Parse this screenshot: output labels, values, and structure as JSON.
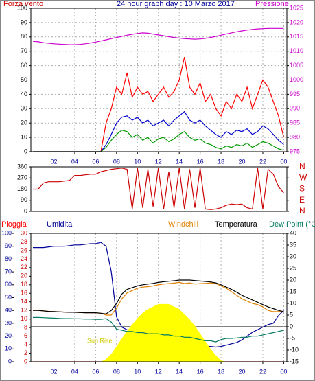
{
  "chart_data": [
    {
      "type": "line",
      "title": "24 hour graph day : 10 Marzo 2017",
      "ylabel": "Forza vento",
      "y2label": "Pressione",
      "x": [
        0,
        0.5,
        1,
        1.5,
        2,
        2.5,
        3,
        3.5,
        4,
        4.5,
        5,
        5.5,
        6,
        6.5,
        7,
        7.5,
        8,
        8.5,
        9,
        9.5,
        10,
        10.5,
        11,
        11.5,
        12,
        12.5,
        13,
        13.5,
        14,
        14.5,
        15,
        15.5,
        16,
        16.5,
        17,
        17.5,
        18,
        18.5,
        19,
        19.5,
        20,
        20.5,
        21,
        21.5,
        22,
        22.5,
        23,
        23.5,
        24
      ],
      "xlim": [
        -0.2,
        24.3
      ],
      "xticks": [
        {
          "value": 2,
          "label": "02"
        },
        {
          "value": 4,
          "label": "04"
        },
        {
          "value": 6,
          "label": "06"
        },
        {
          "value": 8,
          "label": "08"
        },
        10,
        12,
        14,
        16,
        18,
        20,
        22,
        {
          "value": 24,
          "label": "00"
        }
      ],
      "ylim": [
        0,
        100
      ],
      "yticks": [
        0,
        10,
        20,
        30,
        40,
        50,
        60,
        70,
        80,
        90,
        100
      ],
      "y2lim": [
        975,
        1025
      ],
      "y2ticks": [
        975,
        980,
        985,
        990,
        995,
        1000,
        1005,
        1010,
        1015,
        1020,
        1025
      ],
      "grid": true,
      "series": [
        {
          "color": "#ff0000",
          "values": [
            0,
            0,
            0,
            0,
            0,
            0,
            0,
            0,
            0,
            0,
            0,
            0,
            0,
            0,
            20,
            30,
            45,
            40,
            55,
            38,
            45,
            40,
            42,
            35,
            40,
            45,
            38,
            42,
            50,
            66,
            45,
            40,
            48,
            35,
            40,
            30,
            25,
            35,
            30,
            40,
            35,
            45,
            30,
            40,
            50,
            45,
            35,
            25,
            10
          ]
        },
        {
          "color": "#0000cc",
          "values": [
            0,
            0,
            0,
            0,
            0,
            0,
            0,
            0,
            0,
            0,
            0,
            0,
            0,
            0,
            5,
            12,
            20,
            24,
            25,
            22,
            24,
            20,
            22,
            18,
            20,
            22,
            18,
            22,
            25,
            28,
            22,
            20,
            22,
            18,
            15,
            12,
            10,
            14,
            12,
            15,
            14,
            16,
            12,
            14,
            18,
            16,
            12,
            8,
            5
          ]
        },
        {
          "color": "#009900",
          "values": [
            0,
            0,
            0,
            0,
            0,
            0,
            0,
            0,
            0,
            0,
            0,
            0,
            0,
            0,
            3,
            8,
            12,
            15,
            14,
            10,
            12,
            8,
            10,
            6,
            9,
            10,
            7,
            9,
            12,
            14,
            10,
            8,
            9,
            6,
            5,
            3,
            2,
            4,
            3,
            5,
            4,
            6,
            3,
            5,
            7,
            6,
            4,
            2,
            1
          ]
        },
        {
          "color": "#cc00cc",
          "axis": "y2",
          "values": [
            1013.5,
            1013.3,
            1013,
            1012.8,
            1012.6,
            1012.5,
            1012.4,
            1012.3,
            1012.3,
            1012.4,
            1012.6,
            1012.9,
            1013.2,
            1013.6,
            1014,
            1014.4,
            1014.8,
            1015.2,
            1015.6,
            1015.9,
            1016.2,
            1016.4,
            1016.3,
            1016,
            1015.7,
            1015.4,
            1015.1,
            1014.8,
            1014.6,
            1014.4,
            1014.3,
            1014.2,
            1014.3,
            1014.5,
            1014.8,
            1015.2,
            1015.6,
            1016,
            1016.4,
            1016.8,
            1017.1,
            1017.4,
            1017.6,
            1017.8,
            1017.9,
            1018,
            1018,
            1018,
            1018
          ]
        }
      ]
    },
    {
      "type": "line",
      "x": [
        0,
        0.5,
        1,
        1.5,
        2,
        2.5,
        3,
        3.5,
        4,
        4.5,
        5,
        5.5,
        6,
        6.5,
        7,
        7.5,
        8,
        8.5,
        9,
        9.5,
        10,
        10.5,
        11,
        11.5,
        12,
        12.5,
        13,
        13.5,
        14,
        14.5,
        15,
        15.5,
        16,
        16.5,
        17,
        17.5,
        18,
        18.5,
        19,
        19.5,
        20,
        20.5,
        21,
        21.5,
        22,
        22.5,
        23,
        23.5,
        24
      ],
      "xlim": [
        -0.2,
        24.3
      ],
      "ylim": [
        0,
        360
      ],
      "yticks": [
        0,
        90,
        180,
        270,
        360
      ],
      "y2lim": [
        0,
        360
      ],
      "y2ticks": [
        {
          "value": 360,
          "label": "N"
        },
        {
          "value": 270,
          "label": "W"
        },
        {
          "value": 180,
          "label": "S"
        },
        {
          "value": 90,
          "label": "E"
        },
        {
          "value": 0,
          "label": "N"
        }
      ],
      "grid": false,
      "series": [
        {
          "color": "#cc0000",
          "values": [
            180,
            180,
            230,
            240,
            240,
            240,
            245,
            250,
            290,
            290,
            295,
            300,
            300,
            320,
            330,
            340,
            345,
            350,
            340,
            20,
            350,
            30,
            340,
            40,
            350,
            20,
            320,
            30,
            350,
            20,
            340,
            30,
            350,
            20,
            15,
            20,
            30,
            50,
            60,
            55,
            60,
            30,
            20,
            350,
            20,
            340,
            300,
            200,
            150
          ]
        }
      ]
    },
    {
      "type": "line",
      "x": [
        0,
        0.5,
        1,
        1.5,
        2,
        2.5,
        3,
        3.5,
        4,
        4.5,
        5,
        5.5,
        6,
        6.5,
        7,
        7.5,
        8,
        8.5,
        9,
        9.5,
        10,
        10.5,
        11,
        11.5,
        12,
        12.5,
        13,
        13.5,
        14,
        14.5,
        15,
        15.5,
        16,
        16.5,
        17,
        17.5,
        18,
        18.5,
        19,
        19.5,
        20,
        20.5,
        21,
        21.5,
        22,
        22.5,
        23,
        23.5,
        24
      ],
      "xlim": [
        -0.2,
        24.3
      ],
      "xticks": [
        {
          "value": 2,
          "label": "02"
        },
        {
          "value": 4,
          "label": "04"
        },
        {
          "value": 6,
          "label": "06"
        },
        {
          "value": 8,
          "label": "08"
        },
        10,
        12,
        14,
        16,
        18,
        20,
        22,
        {
          "value": 24,
          "label": "00"
        }
      ],
      "ylim": [
        0,
        100
      ],
      "yticks": [
        0,
        10,
        20,
        30,
        40,
        50,
        60,
        70,
        80,
        90,
        100
      ],
      "y2lim": [
        0,
        30
      ],
      "y2ticks": [
        0,
        2,
        4,
        6,
        8,
        10,
        12,
        14,
        16,
        18,
        20,
        22,
        24,
        26,
        28,
        30
      ],
      "y3lim": [
        -15,
        40
      ],
      "y3ticks": [
        -15,
        -10,
        -5,
        0,
        5,
        10,
        15,
        20,
        25,
        30,
        35,
        40
      ],
      "grid": "x",
      "zero_line": true,
      "annotations": [
        {
          "text": "Sun Rise"
        }
      ],
      "series": [
        {
          "name": "Pioggia",
          "color": "#ff0000",
          "axis": "y2",
          "values": [
            0,
            0,
            0,
            0,
            0,
            0,
            0,
            0,
            0,
            0,
            0,
            0,
            0,
            0,
            0,
            0,
            0,
            0,
            0,
            0,
            0,
            0,
            0,
            0,
            0,
            0,
            0,
            0,
            0,
            0,
            0,
            0,
            0,
            0,
            0,
            0,
            0,
            0,
            0,
            0,
            0,
            0,
            0,
            0,
            0,
            0,
            0,
            0,
            0
          ]
        },
        {
          "name": "Umidita",
          "color": "#000099",
          "values": [
            89,
            89,
            89,
            89.5,
            90,
            90,
            90,
            90.5,
            91,
            91,
            91.5,
            92,
            92,
            93,
            90,
            70,
            35,
            27,
            25,
            24,
            23,
            22,
            21,
            20,
            19,
            18,
            17,
            16.5,
            16,
            15,
            14.5,
            14,
            13,
            12,
            12,
            11.5,
            12,
            13,
            14,
            15,
            17,
            20,
            23,
            25,
            27,
            29,
            30,
            36,
            40
          ]
        },
        {
          "color": "#ffff00",
          "area": true,
          "values": [
            0,
            0,
            0,
            0,
            0,
            0,
            0,
            0,
            0,
            0,
            0,
            0,
            0,
            0,
            2,
            6,
            12,
            18,
            24,
            29,
            34,
            38,
            41,
            43,
            45,
            45,
            45,
            43,
            41,
            37,
            33,
            28,
            22,
            16,
            10,
            5,
            1,
            0,
            0,
            0,
            0,
            0,
            0,
            0,
            0,
            0,
            0,
            0,
            0
          ]
        },
        {
          "name": "Windchill",
          "color": "#e08000",
          "axis": "y3",
          "values": [
            7,
            7,
            6.8,
            6.6,
            6.5,
            6.4,
            6.3,
            6.2,
            6.2,
            6.1,
            6,
            6,
            6,
            5.8,
            5,
            5,
            8,
            12,
            14.5,
            15.5,
            16.5,
            17,
            17.2,
            17.5,
            18,
            18.3,
            18.5,
            18.7,
            19,
            18.5,
            18.8,
            18.3,
            18.5,
            18.6,
            18.8,
            18.5,
            17.5,
            16.5,
            15,
            13.5,
            12,
            11,
            10,
            9.5,
            8.5,
            7,
            6.5,
            6.5,
            6.5
          ]
        },
        {
          "name": "Temperatura",
          "color": "#000000",
          "axis": "y3",
          "values": [
            7,
            7,
            6.8,
            6.6,
            6.5,
            6.4,
            6.3,
            6.2,
            6.2,
            6.1,
            6,
            6,
            6,
            5.8,
            5.5,
            7,
            10,
            14,
            16,
            16.8,
            17.5,
            18,
            18.3,
            18.6,
            19,
            19.3,
            19.5,
            19.7,
            20,
            20,
            20,
            19.8,
            19.6,
            19.4,
            19.2,
            18.8,
            18,
            17,
            16,
            14.8,
            13.5,
            12.5,
            11.5,
            10.5,
            9.5,
            8.5,
            7.8,
            7,
            6.5
          ]
        },
        {
          "name": "Dew Point (°C",
          "color": "#007a60",
          "axis": "y3",
          "values": [
            4,
            4,
            3.9,
            3.8,
            3.7,
            3.6,
            3.5,
            3.5,
            3.4,
            3.4,
            3.3,
            3.3,
            3.2,
            3.2,
            3.5,
            2,
            -1,
            -1.5,
            -2,
            -2,
            -2.5,
            -2.5,
            -3,
            -3,
            -3,
            -3.5,
            -3.5,
            -4,
            -4,
            -4.5,
            -4.5,
            -5,
            -5.5,
            -6,
            -6,
            -6.5,
            -5.5,
            -5,
            -5,
            -4.8,
            -4.5,
            -4.5,
            -4,
            -4,
            -3.5,
            -3,
            -2.5,
            -2,
            -1.5
          ]
        }
      ]
    }
  ]
}
